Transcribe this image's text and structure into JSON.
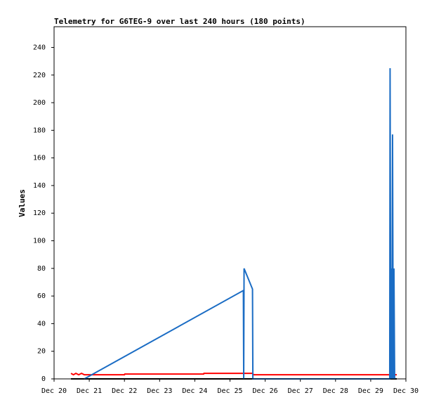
{
  "chart_data": {
    "type": "line",
    "title": "Telemetry for G6TEG-9 over last 240 hours (180 points)",
    "y_label": "Values",
    "xlim": [
      20,
      30
    ],
    "xticks": [
      {
        "value": 20,
        "label": "Dec 20"
      },
      {
        "value": 21,
        "label": "Dec 21"
      },
      {
        "value": 22,
        "label": "Dec 22"
      },
      {
        "value": 23,
        "label": "Dec 23"
      },
      {
        "value": 24,
        "label": "Dec 24"
      },
      {
        "value": 25,
        "label": "Dec 25"
      },
      {
        "value": 26,
        "label": "Dec 26"
      },
      {
        "value": 27,
        "label": "Dec 27"
      },
      {
        "value": 28,
        "label": "Dec 28"
      },
      {
        "value": 29,
        "label": "Dec 29"
      },
      {
        "value": 30,
        "label": "Dec 30"
      }
    ],
    "ylim": [
      0,
      255
    ],
    "yticks": [
      0,
      20,
      40,
      60,
      80,
      100,
      120,
      140,
      160,
      180,
      200,
      220,
      240
    ],
    "grid": false,
    "series": [
      {
        "color": "#000000",
        "x": [
          20.48,
          29.74
        ],
        "values": [
          0,
          0
        ]
      },
      {
        "color": "#ff0000",
        "x": [
          20.48,
          20.55,
          20.62,
          20.7,
          20.78,
          20.86,
          22.0,
          22.01,
          24.25,
          24.26,
          25.65,
          25.66,
          29.74
        ],
        "values": [
          4,
          3,
          4,
          3,
          4,
          3,
          3,
          3.5,
          3.5,
          4,
          4,
          3,
          3
        ]
      },
      {
        "color": "#1a6cc4",
        "x": [
          20.86,
          25.38,
          25.39,
          25.4,
          25.64,
          25.65,
          29.54,
          29.55,
          29.57,
          29.58,
          29.6,
          29.62,
          29.64,
          29.66,
          29.68
        ],
        "values": [
          0,
          64,
          0,
          80,
          65,
          0,
          0,
          225,
          0,
          80,
          0,
          177,
          0,
          80,
          0
        ]
      }
    ]
  }
}
